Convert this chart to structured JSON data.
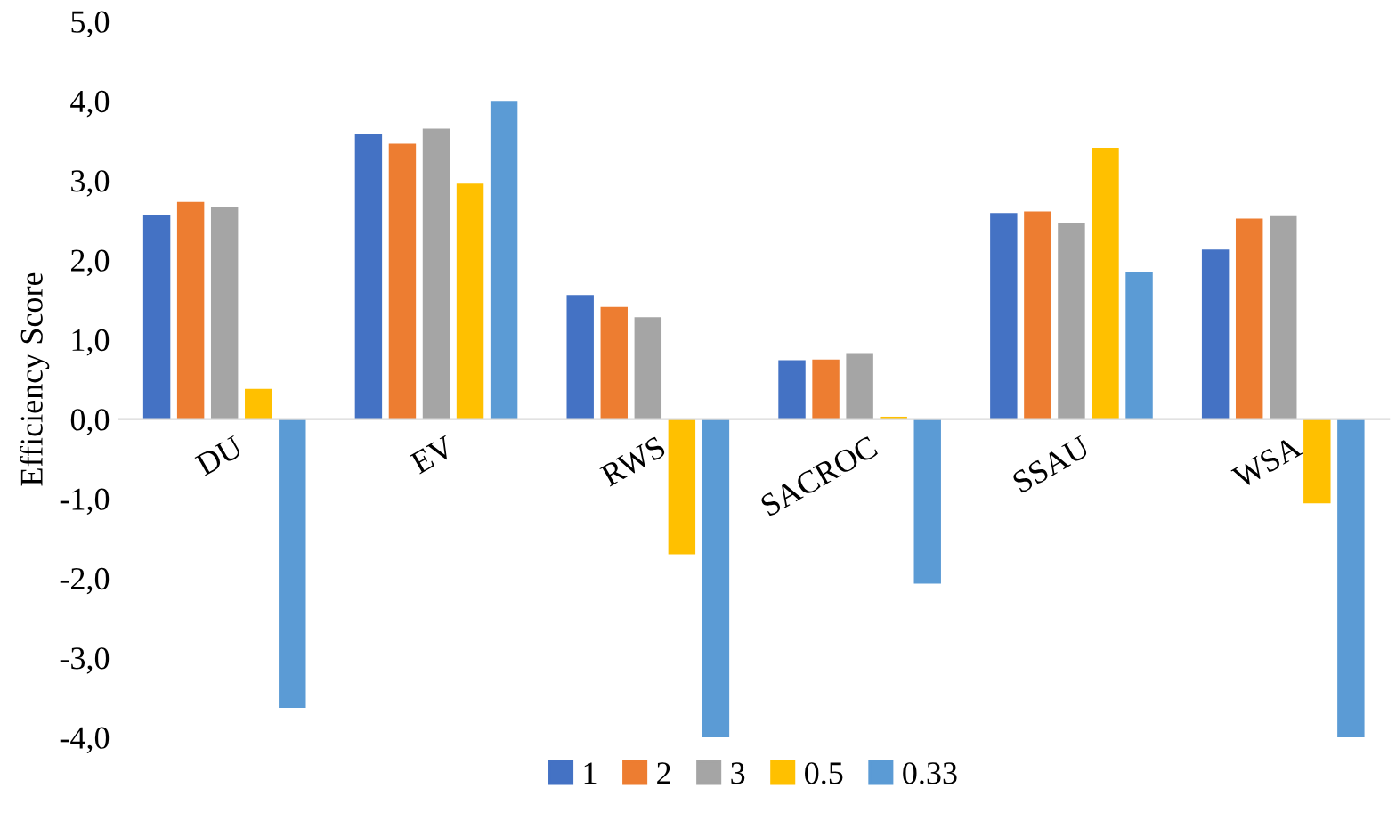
{
  "chart_data": {
    "type": "bar",
    "ylabel": "Efficiency Score",
    "categories": [
      "DU",
      "EV",
      "RWS",
      "SACROC",
      "SSAU",
      "WSA"
    ],
    "series": [
      {
        "name": "1",
        "color": "#4472c4",
        "values": [
          2.56,
          3.59,
          1.56,
          0.74,
          2.59,
          2.13
        ]
      },
      {
        "name": "2",
        "color": "#ed7d31",
        "values": [
          2.73,
          3.46,
          1.41,
          0.75,
          2.61,
          2.52
        ]
      },
      {
        "name": "3",
        "color": "#a5a5a5",
        "values": [
          2.66,
          3.65,
          1.28,
          0.83,
          2.47,
          2.55
        ]
      },
      {
        "name": "0.5",
        "color": "#ffc000",
        "values": [
          0.38,
          2.96,
          -1.7,
          0.03,
          3.41,
          -1.06
        ]
      },
      {
        "name": "0.33",
        "color": "#5b9bd5",
        "values": [
          -3.63,
          4.0,
          -4.0,
          -2.07,
          1.85,
          -4.0
        ]
      }
    ],
    "ylim": [
      -4.0,
      5.0
    ],
    "yticks": [
      {
        "value": -4,
        "label": "-4,0"
      },
      {
        "value": -3,
        "label": "-3,0"
      },
      {
        "value": -2,
        "label": "-2,0"
      },
      {
        "value": -1,
        "label": "-1,0"
      },
      {
        "value": 0,
        "label": "0,0"
      },
      {
        "value": 1,
        "label": "1,0"
      },
      {
        "value": 2,
        "label": "2,0"
      },
      {
        "value": 3,
        "label": "3,0"
      },
      {
        "value": 4,
        "label": "4,0"
      },
      {
        "value": 5,
        "label": "5,0"
      }
    ],
    "grid": false,
    "legend": "bottom"
  }
}
